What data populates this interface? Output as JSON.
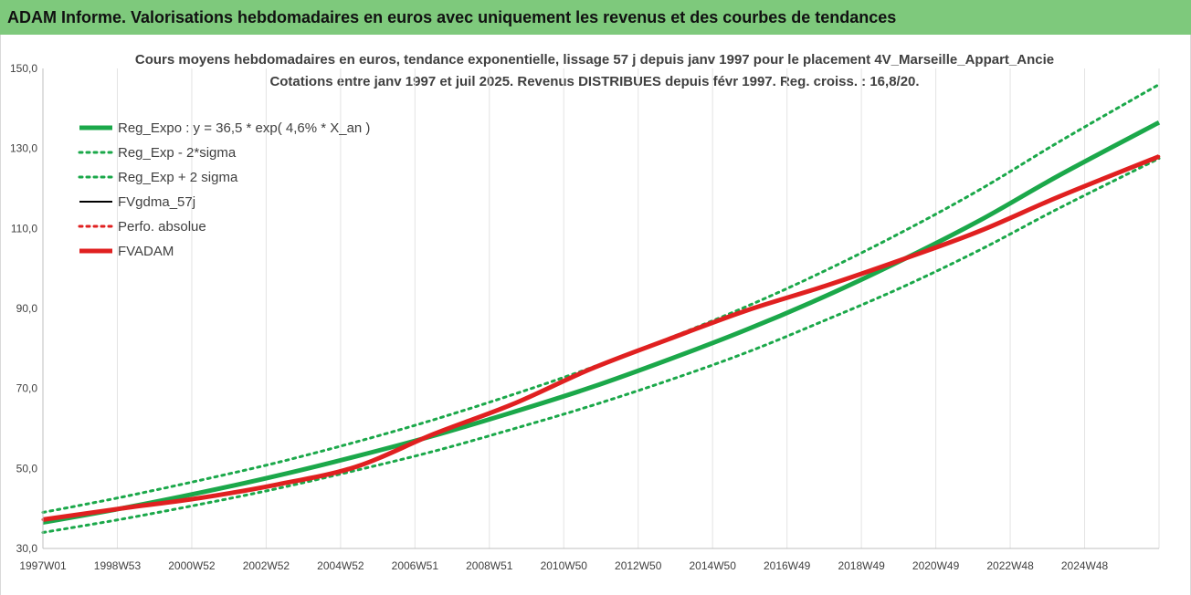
{
  "banner": {
    "title": "ADAM Informe. Valorisations hebdomadaires en euros avec uniquement les revenus et des courbes de tendances"
  },
  "chart_data": {
    "type": "line",
    "title": "Cours moyens hebdomadaires en euros, tendance exponentielle, lissage 57 j depuis janv 1997  pour le placement 4V_Marseille_Appart_Ancie",
    "subtitle": "Cotations entre janv 1997 et juil 2025. Revenus DISTRIBUES depuis févr 1997. Reg. croiss. : 16,8/20.",
    "xlabel": "",
    "ylabel": "",
    "x_start": 1997.0,
    "x_end": 2025.55,
    "xlim": [
      1997.0,
      2025.55
    ],
    "ylim": [
      30,
      150
    ],
    "y_ticks": [
      "30,0",
      "50,0",
      "70,0",
      "90,0",
      "110,0",
      "130,0",
      "150,0"
    ],
    "x_tick_labels": [
      "1997W01",
      "1998W53",
      "2000W52",
      "2002W52",
      "2004W52",
      "2006W51",
      "2008W51",
      "2010W50",
      "2012W50",
      "2014W50",
      "2016W49",
      "2018W49",
      "2020W49",
      "2022W48",
      "2024W48"
    ],
    "vertical_gridlines": true,
    "horizontal_gridlines": false,
    "legend_position": "top-left",
    "series": [
      {
        "name": "Reg_Expo : y = 36,5 * exp( 4,6% *  X_an )",
        "color": "#1ba84a",
        "style": "solid-thick",
        "x": [
          1997.0,
          1999.0,
          2001.0,
          2003.0,
          2005.0,
          2007.0,
          2009.0,
          2011.0,
          2013.0,
          2015.0,
          2017.0,
          2019.0,
          2021.0,
          2023.0,
          2025.55
        ],
        "values": [
          36.5,
          40.0,
          43.9,
          48.2,
          53.0,
          58.2,
          64.0,
          70.2,
          77.2,
          84.7,
          93.0,
          102.2,
          112.2,
          123.3,
          136.5
        ]
      },
      {
        "name": "Reg_Exp - 2*sigma",
        "color": "#1ba84a",
        "style": "dotted",
        "x": [
          1997.0,
          1999.0,
          2001.0,
          2003.0,
          2005.0,
          2007.0,
          2009.0,
          2011.0,
          2013.0,
          2015.0,
          2017.0,
          2019.0,
          2021.0,
          2023.0,
          2025.55
        ],
        "values": [
          34.0,
          37.3,
          41.0,
          45.0,
          49.5,
          54.3,
          59.8,
          65.6,
          72.0,
          79.0,
          87.0,
          95.4,
          104.8,
          115.1,
          127.5
        ]
      },
      {
        "name": "Reg_Exp + 2 sigma",
        "color": "#1ba84a",
        "style": "dotted",
        "x": [
          1997.0,
          1999.0,
          2001.0,
          2003.0,
          2005.0,
          2007.0,
          2009.0,
          2011.0,
          2013.0,
          2015.0,
          2017.0,
          2019.0,
          2021.0,
          2023.0,
          2025.55
        ],
        "values": [
          39.0,
          42.8,
          47.0,
          51.5,
          56.6,
          62.2,
          68.4,
          75.1,
          82.5,
          90.5,
          99.4,
          109.2,
          119.9,
          131.7,
          146.0
        ]
      },
      {
        "name": "FVgdma_57j",
        "color": "#000000",
        "style": "solid",
        "x": [
          1997.0,
          1999.0,
          2001.0,
          2003.0,
          2005.0,
          2007.0,
          2009.0,
          2011.0,
          2013.0,
          2015.0,
          2017.0,
          2019.0,
          2021.0,
          2023.0,
          2025.55
        ],
        "values": [
          37.2,
          40.0,
          42.6,
          46.0,
          50.4,
          58.6,
          66.0,
          74.8,
          82.3,
          89.5,
          95.6,
          102.3,
          109.5,
          118.0,
          128.0
        ]
      },
      {
        "name": "Perfo. absolue",
        "color": "#e02020",
        "style": "dotted",
        "x": [
          1997.0,
          1999.0,
          2001.0,
          2003.0,
          2005.0,
          2007.0,
          2009.0,
          2011.0,
          2013.0,
          2015.0,
          2017.0,
          2019.0,
          2021.0,
          2023.0,
          2025.55
        ],
        "values": [
          37.2,
          40.0,
          42.6,
          46.0,
          50.4,
          58.6,
          66.0,
          74.8,
          82.3,
          89.5,
          95.6,
          102.3,
          109.5,
          118.0,
          128.0
        ]
      },
      {
        "name": "FVADAM",
        "color": "#e02020",
        "style": "solid-thick",
        "x": [
          1997.0,
          1999.0,
          2001.0,
          2003.0,
          2005.0,
          2007.0,
          2009.0,
          2011.0,
          2013.0,
          2015.0,
          2017.0,
          2019.0,
          2021.0,
          2023.0,
          2025.55
        ],
        "values": [
          37.2,
          40.0,
          42.6,
          46.0,
          50.4,
          58.6,
          66.0,
          74.8,
          82.3,
          89.5,
          95.6,
          102.3,
          109.5,
          118.0,
          128.0
        ]
      }
    ]
  }
}
